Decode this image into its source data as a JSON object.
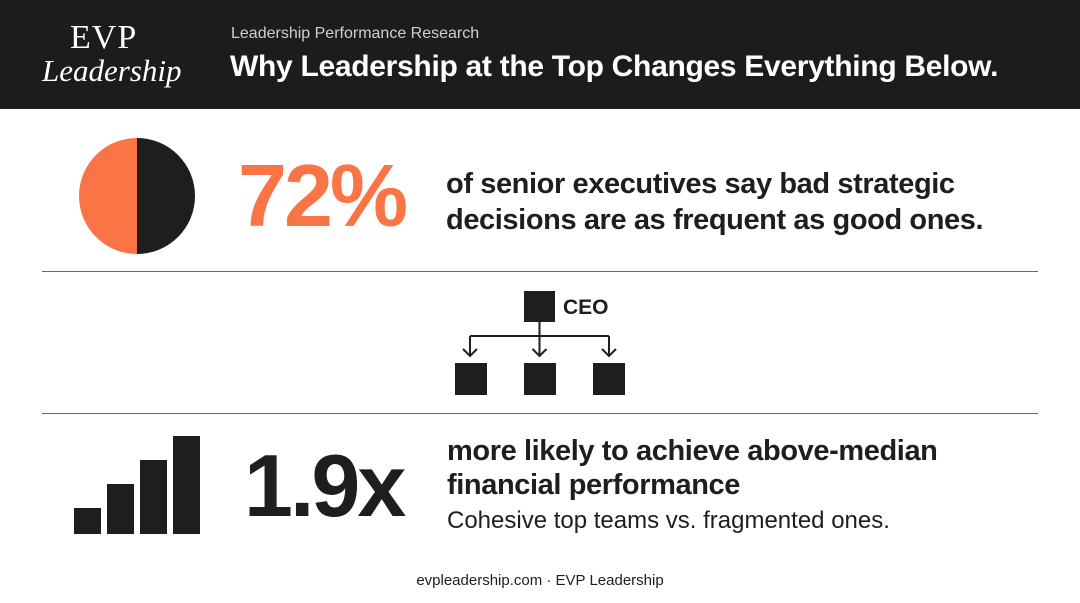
{
  "colors": {
    "accent": "#fb7445",
    "dark": "#1e1e1e",
    "header_bg": "#1c1c1c",
    "text_light": "#ffffff"
  },
  "header": {
    "logo_line1": "EVP",
    "logo_line2": "Leadership",
    "kicker": "Leadership Performance Research",
    "title": "Why Leadership at the Top Changes Everything Below."
  },
  "stat1": {
    "value": "72%",
    "description_line1": "of senior executives say bad strategic",
    "description_line2": "decisions are as frequent as good ones.",
    "pie_icon": "pie-chart-icon",
    "pie_fraction_orange": 0.5
  },
  "org_chart": {
    "label": "CEO",
    "icon": "org-chart-icon"
  },
  "stat2": {
    "value": "1.9x",
    "description_line1": "more likely to achieve above-median",
    "description_line2": "financial performance",
    "subtext": "Cohesive top teams vs. fragmented ones.",
    "bars_icon": "bar-chart-icon"
  },
  "footer": {
    "text": "evpleadership.com · EVP Leadership"
  }
}
